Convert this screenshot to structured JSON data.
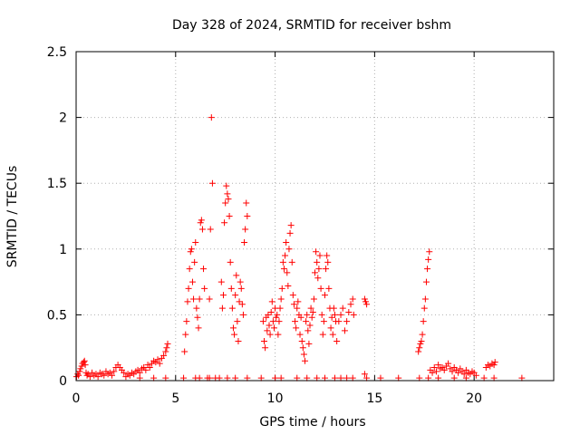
{
  "chart_data": {
    "type": "scatter",
    "title": "Day 328 of 2024, SRMTID for receiver bshm",
    "xlabel": "GPS time / hours",
    "ylabel": "SRMTID / TECUs",
    "xlim": [
      0,
      24
    ],
    "ylim": [
      0,
      2.5
    ],
    "xticks": [
      0,
      5,
      10,
      15,
      20
    ],
    "yticks": [
      0,
      0.5,
      1,
      1.5,
      2,
      2.5
    ],
    "xtick_labels": [
      "0",
      "5",
      "10",
      "15",
      "20"
    ],
    "ytick_labels": [
      "0",
      "0.5",
      "1",
      "1.5",
      "2",
      "2.5"
    ],
    "grid": true,
    "marker": "+",
    "color": "#ff0000",
    "series": [
      {
        "name": "SRMTID",
        "points": [
          [
            0.02,
            0.03
          ],
          [
            0.08,
            0.05
          ],
          [
            0.12,
            0.04
          ],
          [
            0.18,
            0.07
          ],
          [
            0.22,
            0.09
          ],
          [
            0.28,
            0.11
          ],
          [
            0.32,
            0.13
          ],
          [
            0.38,
            0.14
          ],
          [
            0.42,
            0.15
          ],
          [
            0.46,
            0.12
          ],
          [
            0.5,
            0.06
          ],
          [
            0.55,
            0.04
          ],
          [
            0.6,
            0.05
          ],
          [
            0.7,
            0.03
          ],
          [
            0.8,
            0.06
          ],
          [
            0.9,
            0.04
          ],
          [
            1.0,
            0.05
          ],
          [
            1.1,
            0.03
          ],
          [
            1.2,
            0.06
          ],
          [
            1.3,
            0.05
          ],
          [
            1.4,
            0.04
          ],
          [
            1.5,
            0.07
          ],
          [
            1.6,
            0.05
          ],
          [
            1.7,
            0.06
          ],
          [
            1.8,
            0.04
          ],
          [
            1.9,
            0.07
          ],
          [
            2.0,
            0.1
          ],
          [
            2.1,
            0.12
          ],
          [
            2.2,
            0.1
          ],
          [
            2.3,
            0.08
          ],
          [
            2.4,
            0.06
          ],
          [
            2.5,
            0.03
          ],
          [
            2.6,
            0.05
          ],
          [
            2.7,
            0.04
          ],
          [
            2.8,
            0.06
          ],
          [
            2.9,
            0.05
          ],
          [
            3.0,
            0.07
          ],
          [
            3.1,
            0.08
          ],
          [
            3.2,
            0.06
          ],
          [
            3.3,
            0.09
          ],
          [
            3.4,
            0.1
          ],
          [
            3.5,
            0.08
          ],
          [
            3.6,
            0.12
          ],
          [
            3.7,
            0.1
          ],
          [
            3.8,
            0.13
          ],
          [
            3.9,
            0.15
          ],
          [
            4.0,
            0.14
          ],
          [
            4.1,
            0.16
          ],
          [
            4.2,
            0.13
          ],
          [
            4.3,
            0.17
          ],
          [
            4.4,
            0.19
          ],
          [
            4.5,
            0.22
          ],
          [
            4.55,
            0.25
          ],
          [
            4.6,
            0.28
          ],
          [
            4.5,
            0.02
          ],
          [
            3.9,
            0.02
          ],
          [
            3.2,
            0.02
          ],
          [
            5.4,
            0.02
          ],
          [
            5.45,
            0.22
          ],
          [
            5.5,
            0.35
          ],
          [
            5.55,
            0.45
          ],
          [
            5.6,
            0.6
          ],
          [
            5.65,
            0.7
          ],
          [
            5.7,
            0.85
          ],
          [
            5.75,
            0.98
          ],
          [
            5.8,
            1.0
          ],
          [
            5.85,
            0.75
          ],
          [
            5.9,
            0.62
          ],
          [
            5.95,
            0.9
          ],
          [
            6.0,
            1.05
          ],
          [
            6.05,
            0.55
          ],
          [
            6.1,
            0.48
          ],
          [
            6.15,
            0.4
          ],
          [
            6.2,
            0.62
          ],
          [
            6.25,
            1.2
          ],
          [
            6.3,
            1.22
          ],
          [
            6.35,
            1.15
          ],
          [
            6.4,
            0.85
          ],
          [
            6.45,
            0.7
          ],
          [
            6.0,
            0.02
          ],
          [
            6.2,
            0.02
          ],
          [
            6.6,
            0.02
          ],
          [
            6.7,
            0.62
          ],
          [
            6.75,
            1.15
          ],
          [
            6.8,
            2.0
          ],
          [
            6.85,
            1.5
          ],
          [
            6.7,
            0.02
          ],
          [
            7.0,
            0.02
          ],
          [
            7.2,
            0.02
          ],
          [
            7.3,
            0.75
          ],
          [
            7.35,
            0.55
          ],
          [
            7.4,
            0.65
          ],
          [
            7.45,
            1.2
          ],
          [
            7.5,
            1.35
          ],
          [
            7.55,
            1.48
          ],
          [
            7.6,
            1.42
          ],
          [
            7.65,
            1.38
          ],
          [
            7.7,
            1.25
          ],
          [
            7.75,
            0.9
          ],
          [
            7.8,
            0.7
          ],
          [
            7.85,
            0.55
          ],
          [
            7.9,
            0.4
          ],
          [
            7.95,
            0.35
          ],
          [
            8.0,
            0.65
          ],
          [
            8.05,
            0.8
          ],
          [
            8.1,
            0.45
          ],
          [
            8.15,
            0.3
          ],
          [
            8.2,
            0.6
          ],
          [
            8.25,
            0.75
          ],
          [
            8.3,
            0.7
          ],
          [
            8.35,
            0.58
          ],
          [
            8.4,
            0.5
          ],
          [
            8.45,
            1.05
          ],
          [
            8.5,
            1.15
          ],
          [
            8.55,
            1.35
          ],
          [
            8.6,
            1.25
          ],
          [
            7.6,
            0.02
          ],
          [
            8.0,
            0.02
          ],
          [
            8.6,
            0.02
          ],
          [
            9.3,
            0.02
          ],
          [
            9.4,
            0.45
          ],
          [
            9.45,
            0.3
          ],
          [
            9.5,
            0.25
          ],
          [
            9.55,
            0.48
          ],
          [
            9.6,
            0.38
          ],
          [
            9.65,
            0.5
          ],
          [
            9.7,
            0.42
          ],
          [
            9.75,
            0.35
          ],
          [
            9.8,
            0.52
          ],
          [
            9.85,
            0.6
          ],
          [
            9.9,
            0.45
          ],
          [
            9.95,
            0.4
          ],
          [
            10.0,
            0.55
          ],
          [
            10.05,
            0.48
          ],
          [
            10.1,
            0.5
          ],
          [
            10.15,
            0.35
          ],
          [
            10.2,
            0.45
          ],
          [
            10.25,
            0.55
          ],
          [
            10.3,
            0.62
          ],
          [
            10.35,
            0.7
          ],
          [
            10.4,
            0.9
          ],
          [
            10.45,
            0.85
          ],
          [
            10.5,
            0.95
          ],
          [
            10.55,
            1.05
          ],
          [
            10.6,
            0.82
          ],
          [
            10.65,
            0.72
          ],
          [
            10.7,
            1.0
          ],
          [
            10.75,
            1.12
          ],
          [
            10.8,
            1.18
          ],
          [
            10.85,
            0.9
          ],
          [
            10.9,
            0.65
          ],
          [
            10.95,
            0.58
          ],
          [
            11.0,
            0.45
          ],
          [
            11.05,
            0.4
          ],
          [
            11.1,
            0.55
          ],
          [
            11.15,
            0.6
          ],
          [
            11.2,
            0.5
          ],
          [
            11.25,
            0.35
          ],
          [
            11.3,
            0.48
          ],
          [
            11.35,
            0.3
          ],
          [
            11.4,
            0.25
          ],
          [
            11.45,
            0.2
          ],
          [
            11.5,
            0.15
          ],
          [
            11.55,
            0.45
          ],
          [
            11.6,
            0.5
          ],
          [
            11.65,
            0.38
          ],
          [
            11.7,
            0.28
          ],
          [
            11.75,
            0.42
          ],
          [
            11.8,
            0.55
          ],
          [
            11.85,
            0.48
          ],
          [
            11.9,
            0.52
          ],
          [
            11.95,
            0.62
          ],
          [
            12.0,
            0.82
          ],
          [
            12.05,
            0.98
          ],
          [
            12.1,
            0.9
          ],
          [
            12.15,
            0.78
          ],
          [
            12.2,
            0.85
          ],
          [
            12.25,
            0.95
          ],
          [
            12.3,
            0.7
          ],
          [
            12.35,
            0.5
          ],
          [
            12.4,
            0.35
          ],
          [
            12.45,
            0.45
          ],
          [
            12.5,
            0.65
          ],
          [
            12.55,
            0.85
          ],
          [
            12.6,
            0.95
          ],
          [
            12.65,
            0.9
          ],
          [
            12.7,
            0.7
          ],
          [
            12.75,
            0.55
          ],
          [
            12.8,
            0.4
          ],
          [
            12.85,
            0.48
          ],
          [
            12.9,
            0.35
          ],
          [
            12.95,
            0.55
          ],
          [
            13.0,
            0.5
          ],
          [
            13.05,
            0.45
          ],
          [
            13.1,
            0.3
          ],
          [
            13.2,
            0.45
          ],
          [
            13.3,
            0.5
          ],
          [
            13.4,
            0.55
          ],
          [
            13.5,
            0.38
          ],
          [
            13.6,
            0.45
          ],
          [
            13.7,
            0.52
          ],
          [
            13.8,
            0.58
          ],
          [
            13.9,
            0.62
          ],
          [
            13.95,
            0.5
          ],
          [
            10.0,
            0.02
          ],
          [
            10.3,
            0.02
          ],
          [
            11.1,
            0.02
          ],
          [
            11.6,
            0.02
          ],
          [
            12.1,
            0.02
          ],
          [
            12.5,
            0.02
          ],
          [
            13.0,
            0.02
          ],
          [
            13.3,
            0.02
          ],
          [
            13.6,
            0.02
          ],
          [
            13.9,
            0.02
          ],
          [
            14.5,
            0.62
          ],
          [
            14.55,
            0.6
          ],
          [
            14.6,
            0.58
          ],
          [
            14.5,
            0.05
          ],
          [
            14.6,
            0.02
          ],
          [
            15.3,
            0.02
          ],
          [
            16.2,
            0.02
          ],
          [
            17.2,
            0.22
          ],
          [
            17.25,
            0.25
          ],
          [
            17.3,
            0.28
          ],
          [
            17.35,
            0.3
          ],
          [
            17.4,
            0.35
          ],
          [
            17.45,
            0.45
          ],
          [
            17.5,
            0.55
          ],
          [
            17.55,
            0.62
          ],
          [
            17.6,
            0.75
          ],
          [
            17.65,
            0.85
          ],
          [
            17.7,
            0.92
          ],
          [
            17.75,
            0.98
          ],
          [
            17.25,
            0.02
          ],
          [
            17.7,
            0.02
          ],
          [
            17.8,
            0.08
          ],
          [
            17.9,
            0.06
          ],
          [
            18.0,
            0.1
          ],
          [
            18.1,
            0.07
          ],
          [
            18.2,
            0.12
          ],
          [
            18.3,
            0.09
          ],
          [
            18.4,
            0.1
          ],
          [
            18.5,
            0.08
          ],
          [
            18.6,
            0.11
          ],
          [
            18.7,
            0.13
          ],
          [
            18.8,
            0.09
          ],
          [
            18.9,
            0.07
          ],
          [
            19.0,
            0.1
          ],
          [
            19.1,
            0.08
          ],
          [
            19.2,
            0.06
          ],
          [
            19.3,
            0.09
          ],
          [
            19.4,
            0.07
          ],
          [
            19.5,
            0.05
          ],
          [
            19.6,
            0.08
          ],
          [
            19.7,
            0.06
          ],
          [
            19.8,
            0.05
          ],
          [
            19.9,
            0.07
          ],
          [
            20.0,
            0.06
          ],
          [
            20.1,
            0.04
          ],
          [
            18.2,
            0.02
          ],
          [
            19.0,
            0.02
          ],
          [
            19.6,
            0.02
          ],
          [
            20.6,
            0.1
          ],
          [
            20.7,
            0.12
          ],
          [
            20.8,
            0.11
          ],
          [
            20.9,
            0.13
          ],
          [
            21.0,
            0.12
          ],
          [
            21.05,
            0.14
          ],
          [
            20.5,
            0.02
          ],
          [
            21.0,
            0.02
          ],
          [
            22.4,
            0.02
          ]
        ]
      }
    ]
  }
}
